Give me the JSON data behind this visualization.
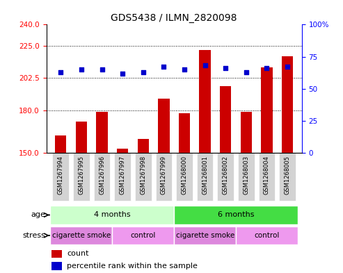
{
  "title": "GDS5438 / ILMN_2820098",
  "samples": [
    "GSM1267994",
    "GSM1267995",
    "GSM1267996",
    "GSM1267997",
    "GSM1267998",
    "GSM1267999",
    "GSM1268000",
    "GSM1268001",
    "GSM1268002",
    "GSM1268003",
    "GSM1268004",
    "GSM1268005"
  ],
  "counts": [
    162,
    172,
    179,
    153,
    160,
    188,
    178,
    222,
    197,
    179,
    210,
    218
  ],
  "percentile_ranks": [
    63,
    65,
    65,
    62,
    63,
    67,
    65,
    68,
    66,
    63,
    66,
    67
  ],
  "ylim_left": [
    150,
    240
  ],
  "ylim_right": [
    0,
    100
  ],
  "yticks_left": [
    150,
    180,
    202.5,
    225,
    240
  ],
  "yticks_right": [
    0,
    25,
    50,
    75,
    100
  ],
  "grid_vals": [
    180,
    202.5,
    225
  ],
  "bar_color": "#cc0000",
  "dot_color": "#0000cc",
  "age_groups": [
    {
      "label": "4 months",
      "start": 0,
      "end": 6,
      "color": "#ccffcc"
    },
    {
      "label": "6 months",
      "start": 6,
      "end": 12,
      "color": "#44dd44"
    }
  ],
  "stress_groups": [
    {
      "label": "cigarette smoke",
      "start": 0,
      "end": 3,
      "color": "#dd88dd"
    },
    {
      "label": "control",
      "start": 3,
      "end": 6,
      "color": "#ee99ee"
    },
    {
      "label": "cigarette smoke",
      "start": 6,
      "end": 9,
      "color": "#dd88dd"
    },
    {
      "label": "control",
      "start": 9,
      "end": 12,
      "color": "#ee99ee"
    }
  ],
  "background_color": "#ffffff",
  "tick_bg": "#cccccc"
}
